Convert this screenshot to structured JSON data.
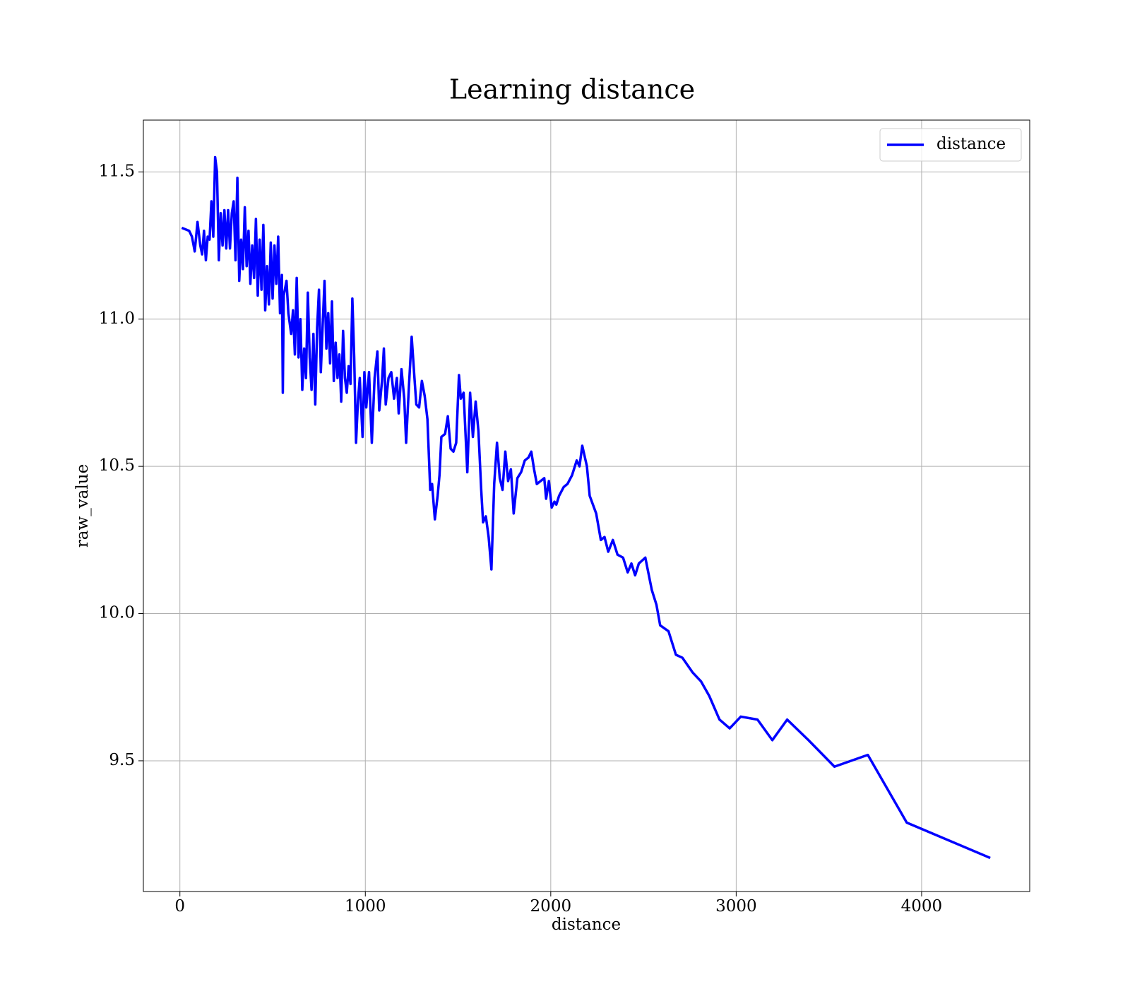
{
  "chart_data": {
    "type": "line",
    "title": "Learning distance",
    "xlabel": "distance",
    "ylabel": "raw_value",
    "x": [
      10,
      50,
      65,
      80,
      95,
      110,
      120,
      130,
      140,
      150,
      160,
      170,
      180,
      190,
      200,
      210,
      220,
      230,
      240,
      250,
      260,
      270,
      280,
      290,
      300,
      310,
      320,
      330,
      340,
      350,
      360,
      370,
      380,
      390,
      400,
      410,
      420,
      430,
      440,
      450,
      460,
      470,
      480,
      490,
      500,
      510,
      520,
      530,
      540,
      550,
      555,
      560,
      575,
      585,
      600,
      610,
      620,
      630,
      640,
      650,
      660,
      670,
      680,
      690,
      700,
      710,
      720,
      730,
      740,
      750,
      760,
      770,
      780,
      790,
      800,
      810,
      820,
      830,
      840,
      850,
      860,
      870,
      880,
      890,
      900,
      910,
      920,
      930,
      940,
      950,
      960,
      970,
      985,
      995,
      1005,
      1020,
      1035,
      1050,
      1065,
      1075,
      1090,
      1100,
      1110,
      1125,
      1140,
      1155,
      1170,
      1180,
      1195,
      1210,
      1220,
      1235,
      1250,
      1265,
      1275,
      1290,
      1305,
      1320,
      1335,
      1350,
      1360,
      1375,
      1390,
      1400,
      1410,
      1430,
      1445,
      1460,
      1475,
      1490,
      1505,
      1515,
      1530,
      1550,
      1565,
      1580,
      1595,
      1610,
      1625,
      1635,
      1650,
      1665,
      1680,
      1695,
      1710,
      1725,
      1740,
      1755,
      1770,
      1785,
      1800,
      1820,
      1840,
      1860,
      1880,
      1895,
      1910,
      1925,
      1945,
      1965,
      1975,
      1990,
      2005,
      2020,
      2030,
      2045,
      2070,
      2090,
      2115,
      2140,
      2155,
      2170,
      2195,
      2210,
      2245,
      2270,
      2290,
      2310,
      2335,
      2360,
      2390,
      2415,
      2435,
      2455,
      2475,
      2510,
      2545,
      2570,
      2590,
      2635,
      2675,
      2710,
      2765,
      2810,
      2855,
      2910,
      2965,
      3025,
      3115,
      3195,
      3275,
      3390,
      3530,
      3710,
      3920,
      4370
    ],
    "series": [
      {
        "name": "distance",
        "color": "#0000ff",
        "values": [
          11.31,
          11.3,
          11.28,
          11.23,
          11.33,
          11.25,
          11.22,
          11.3,
          11.2,
          11.28,
          11.27,
          11.4,
          11.28,
          11.55,
          11.5,
          11.2,
          11.36,
          11.25,
          11.37,
          11.24,
          11.37,
          11.24,
          11.36,
          11.4,
          11.2,
          11.48,
          11.13,
          11.27,
          11.17,
          11.38,
          11.18,
          11.3,
          11.12,
          11.25,
          11.14,
          11.34,
          11.08,
          11.27,
          11.1,
          11.32,
          11.03,
          11.18,
          11.05,
          11.26,
          11.07,
          11.25,
          11.12,
          11.28,
          11.02,
          11.15,
          10.75,
          11.08,
          11.13,
          11.02,
          10.95,
          11.03,
          10.88,
          11.14,
          10.87,
          11.0,
          10.76,
          10.9,
          10.8,
          11.09,
          10.87,
          10.76,
          10.95,
          10.71,
          10.97,
          11.1,
          10.82,
          10.98,
          11.13,
          10.9,
          11.02,
          10.85,
          11.06,
          10.79,
          10.92,
          10.8,
          10.88,
          10.72,
          10.96,
          10.8,
          10.75,
          10.84,
          10.78,
          11.07,
          10.87,
          10.58,
          10.72,
          10.8,
          10.6,
          10.82,
          10.7,
          10.82,
          10.58,
          10.8,
          10.89,
          10.69,
          10.79,
          10.9,
          10.71,
          10.8,
          10.82,
          10.73,
          10.8,
          10.68,
          10.83,
          10.73,
          10.58,
          10.77,
          10.94,
          10.8,
          10.71,
          10.7,
          10.79,
          10.74,
          10.66,
          10.42,
          10.44,
          10.32,
          10.4,
          10.47,
          10.6,
          10.61,
          10.67,
          10.56,
          10.55,
          10.58,
          10.81,
          10.73,
          10.75,
          10.48,
          10.75,
          10.6,
          10.72,
          10.62,
          10.42,
          10.31,
          10.33,
          10.26,
          10.15,
          10.44,
          10.58,
          10.46,
          10.42,
          10.55,
          10.45,
          10.49,
          10.34,
          10.46,
          10.48,
          10.52,
          10.53,
          10.55,
          10.49,
          10.44,
          10.45,
          10.46,
          10.39,
          10.45,
          10.36,
          10.38,
          10.37,
          10.4,
          10.43,
          10.44,
          10.47,
          10.52,
          10.5,
          10.57,
          10.5,
          10.4,
          10.34,
          10.25,
          10.26,
          10.21,
          10.25,
          10.2,
          10.19,
          10.14,
          10.17,
          10.13,
          10.17,
          10.19,
          10.08,
          10.03,
          9.96,
          9.94,
          9.86,
          9.85,
          9.8,
          9.77,
          9.72,
          9.64,
          9.61,
          9.65,
          9.64,
          9.57,
          9.64,
          9.57,
          9.48,
          9.52,
          9.29,
          9.17
        ]
      }
    ],
    "xlim": [
      -197,
      4583
    ],
    "xticks": [
      0,
      1000,
      2000,
      3000,
      4000
    ],
    "ylim": [
      9.056,
      11.676
    ],
    "yticks": [
      9.5,
      {
        "value": 10,
        "label": "10.0"
      },
      10.5,
      {
        "value": 11,
        "label": "11.0"
      },
      11.5
    ],
    "grid": true,
    "legend": "upper right"
  }
}
